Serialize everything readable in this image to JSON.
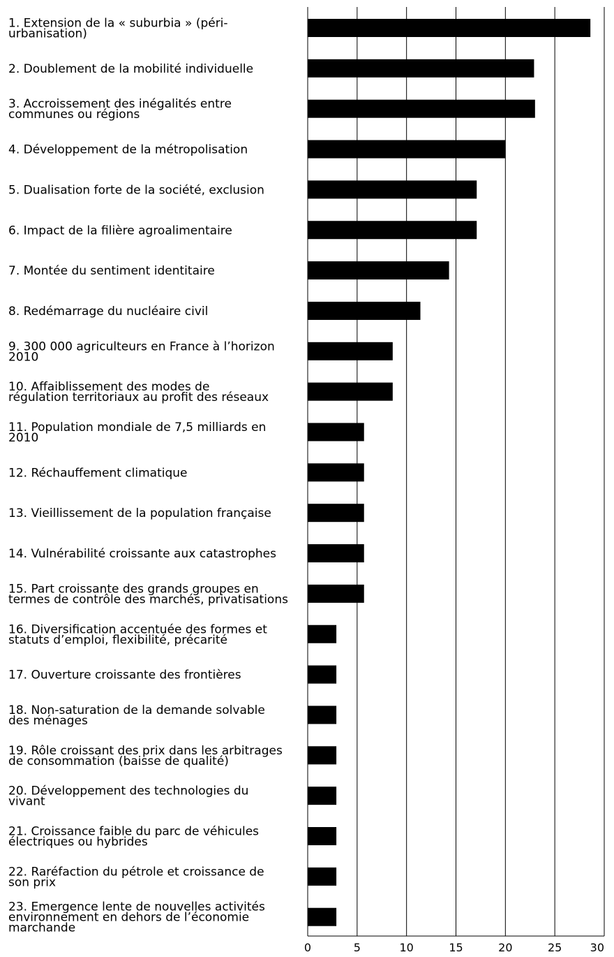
{
  "chart_data": {
    "type": "bar",
    "orientation": "horizontal",
    "title": "",
    "xlabel": "",
    "ylabel": "",
    "xlim": [
      0,
      30
    ],
    "ticks": [
      0,
      5,
      10,
      15,
      20,
      25,
      30
    ],
    "grid": true,
    "bar_color": "#000000",
    "categories": [
      "1. Extension de la « suburbia » (péri-\nurbanisation)",
      "2. Doublement de la mobilité individuelle",
      "3. Accroissement des inégalités entre\ncommunes ou régions",
      "4. Développement de la métropolisation",
      "5. Dualisation forte de la société, exclusion",
      "6. Impact de la filière agroalimentaire",
      "7. Montée du sentiment identitaire",
      "8. Redémarrage du nucléaire civil",
      "9. 300 000 agriculteurs en France à l’horizon\n2010",
      "10. Affaiblissement des modes de\nrégulation territoriaux au profit des réseaux",
      "11. Population mondiale de 7,5 milliards en\n2010",
      "12. Réchauffement climatique",
      "13. Vieillissement de la population française",
      "14. Vulnérabilité croissante aux catastrophes",
      "15. Part croissante des grands groupes en\ntermes de contrôle des marchés, privatisations",
      "16. Diversification accentuée des formes et\nstatuts d’emploi, flexibilité, précarité",
      "17. Ouverture croissante des frontières",
      "18. Non-saturation de la demande solvable\ndes ménages",
      "19. Rôle croissant des prix dans les arbitrages\nde consommation (baisse de qualité)",
      "20. Développement des technologies du\nvivant",
      "21. Croissance faible du parc de véhicules\nélectriques ou hybrides",
      "22. Raréfaction du pétrole et croissance de\nson prix",
      "23. Emergence lente de nouvelles activités\nenvironnement en dehors de l’économie\nmarchande"
    ],
    "values": [
      28.6,
      22.9,
      23.0,
      20.0,
      17.1,
      17.1,
      14.3,
      11.4,
      8.6,
      8.6,
      5.7,
      5.7,
      5.7,
      5.7,
      5.7,
      2.9,
      2.9,
      2.9,
      2.9,
      2.9,
      2.9,
      2.9,
      2.9
    ]
  }
}
